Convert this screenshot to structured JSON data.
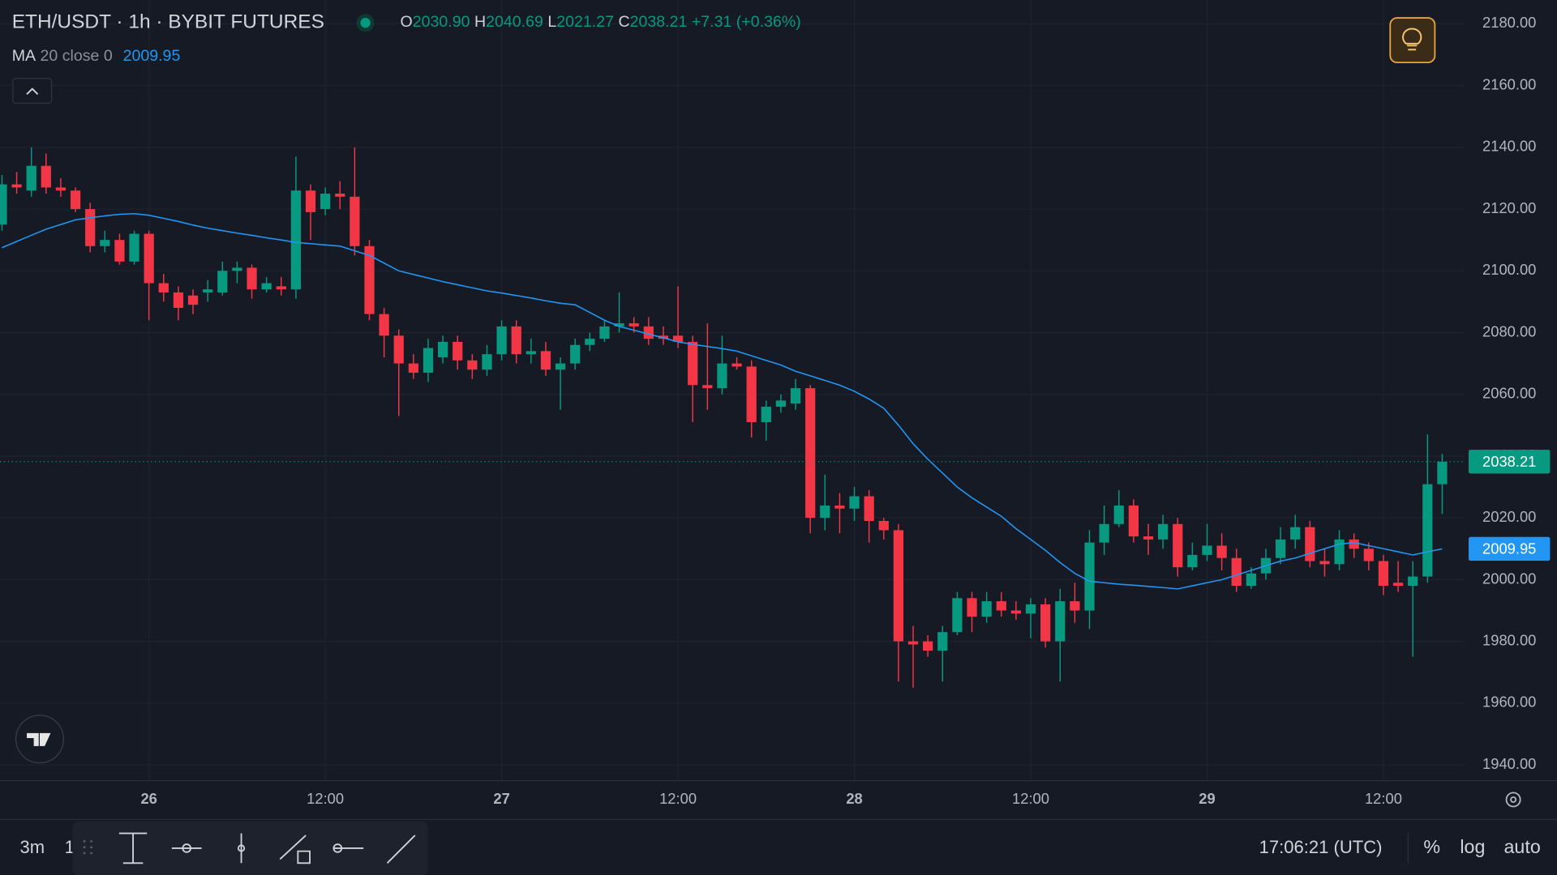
{
  "header": {
    "symbol": "ETH/USDT · 1h · BYBIT FUTURES",
    "ohlc": [
      {
        "key": "O",
        "value": "2030.90"
      },
      {
        "key": "H",
        "value": "2040.69"
      },
      {
        "key": "L",
        "value": "2021.27"
      },
      {
        "key": "C",
        "value": "2038.21"
      }
    ],
    "change": "+7.31 (+0.36%)"
  },
  "chart_data": {
    "type": "candlestick",
    "categories": [
      null,
      null,
      null,
      null,
      null,
      null,
      null,
      null,
      null,
      null,
      "26",
      null,
      null,
      null,
      null,
      null,
      null,
      null,
      null,
      null,
      null,
      null,
      "12:00",
      null,
      null,
      null,
      null,
      null,
      null,
      null,
      null,
      null,
      null,
      null,
      "27",
      null,
      null,
      null,
      null,
      null,
      null,
      null,
      null,
      null,
      null,
      null,
      "12:00",
      null,
      null,
      null,
      null,
      null,
      null,
      null,
      null,
      null,
      null,
      null,
      "28",
      null,
      null,
      null,
      null,
      null,
      null,
      null,
      null,
      null,
      null,
      null,
      "12:00",
      null,
      null,
      null,
      null,
      null,
      null,
      null,
      null,
      null,
      null,
      null,
      "29",
      null,
      null,
      null,
      null,
      null,
      null,
      null,
      null,
      null,
      null,
      null,
      "12:00",
      null,
      null,
      null,
      null
    ],
    "open": [
      2115,
      2128,
      2126,
      2134,
      2127,
      2126,
      2120,
      2108,
      2110,
      2103,
      2112,
      2096,
      2093,
      2092,
      2093,
      2093,
      2100,
      2101,
      2094,
      2095,
      2094,
      2126,
      2120,
      2125,
      2124,
      2108,
      2086,
      2079,
      2070,
      2067,
      2072,
      2077,
      2071,
      2068,
      2073,
      2082,
      2073,
      2074,
      2068,
      2070,
      2076,
      2078,
      2082,
      2083,
      2082,
      2079,
      2079,
      2077,
      2063,
      2062,
      2070,
      2069,
      2051,
      2056,
      2057,
      2062,
      2020,
      2024,
      2023,
      2027,
      2019,
      2016,
      1980,
      1980,
      1977,
      1983,
      1994,
      1988,
      1993,
      1990,
      1989,
      1992,
      1980,
      1993,
      1990,
      2012,
      2018,
      2024,
      2014,
      2013,
      2018,
      2004,
      2008,
      2011,
      2007,
      1998,
      2002,
      2007,
      2013,
      2017,
      2006,
      2005,
      2013,
      2010,
      2006,
      1999,
      1998,
      2001,
      2030.9
    ],
    "high": [
      2131,
      2132,
      2140,
      2138,
      2130,
      2127,
      2122,
      2113,
      2112,
      2113,
      2113,
      2099,
      2095,
      2094,
      2097,
      2103,
      2103,
      2102,
      2098,
      2098,
      2137,
      2128,
      2127,
      2129,
      2140,
      2110,
      2088,
      2081,
      2073,
      2078,
      2079,
      2079,
      2073,
      2076,
      2084,
      2084,
      2078,
      2077,
      2072,
      2078,
      2080,
      2084,
      2093,
      2085,
      2085,
      2082,
      2095,
      2079,
      2083,
      2079,
      2072,
      2071,
      2058,
      2060,
      2065,
      2063,
      2034,
      2028,
      2030,
      2029,
      2020,
      2018,
      1985,
      1982,
      1985,
      1996,
      1996,
      1996,
      1996,
      1993,
      1994,
      1994,
      1997,
      1999,
      2016,
      2024,
      2029,
      2026,
      2018,
      2021,
      2020,
      2012,
      2018,
      2015,
      2010,
      2004,
      2010,
      2017,
      2021,
      2019,
      2010,
      2016,
      2015,
      2012,
      2008,
      2006,
      2006,
      2047,
      2040.69
    ],
    "low": [
      2113,
      2125,
      2124,
      2125,
      2124,
      2119,
      2106,
      2106,
      2102,
      2102,
      2084,
      2090,
      2084,
      2086,
      2090,
      2092,
      2096,
      2091,
      2093,
      2092,
      2091,
      2110,
      2118,
      2120,
      2105,
      2084,
      2072,
      2053,
      2065,
      2064,
      2070,
      2068,
      2065,
      2066,
      2071,
      2070,
      2070,
      2066,
      2055,
      2068,
      2074,
      2077,
      2080,
      2080,
      2076,
      2076,
      2075,
      2051,
      2055,
      2060,
      2068,
      2046,
      2045,
      2054,
      2055,
      2015,
      2016,
      2015,
      2019,
      2012,
      2013,
      1967,
      1965,
      1975,
      1967,
      1982,
      1983,
      1986,
      1988,
      1987,
      1981,
      1978,
      1967,
      1986,
      1984,
      2008,
      2017,
      2012,
      2008,
      2010,
      2001,
      2003,
      2006,
      2003,
      1996,
      1997,
      2000,
      2005,
      2010,
      2004,
      2001,
      2003,
      2007,
      2003,
      1995,
      1996,
      1975,
      1999,
      2021.27
    ],
    "close": [
      2128,
      2127,
      2134,
      2127,
      2126,
      2120,
      2108,
      2110,
      2103,
      2112,
      2096,
      2093,
      2088,
      2089,
      2094,
      2100,
      2101,
      2094,
      2096,
      2094,
      2126,
      2119,
      2125,
      2124,
      2108,
      2086,
      2079,
      2070,
      2067,
      2075,
      2077,
      2071,
      2068,
      2073,
      2082,
      2073,
      2074,
      2068,
      2070,
      2076,
      2078,
      2082,
      2083,
      2082,
      2078,
      2078,
      2077,
      2063,
      2062,
      2070,
      2069,
      2051,
      2056,
      2058,
      2062,
      2020,
      2024,
      2023,
      2027,
      2019,
      2016,
      1980,
      1979,
      1977,
      1983,
      1994,
      1988,
      1993,
      1990,
      1989,
      1992,
      1980,
      1993,
      1990,
      2012,
      2018,
      2024,
      2014,
      2013,
      2018,
      2004,
      2008,
      2011,
      2007,
      1998,
      2002,
      2007,
      2013,
      2017,
      2006,
      2005,
      2013,
      2010,
      2006,
      1998,
      1998,
      2001,
      2030.9,
      2038.21
    ],
    "up_color": "#089981",
    "down_color": "#f23645",
    "series": [
      {
        "name": "MA",
        "params": "20 close 0",
        "color": "#2196f3",
        "values": [
          2107.5,
          2109.5,
          2111.5,
          2113.5,
          2115,
          2116.5,
          2117.2,
          2117.8,
          2118.3,
          2118.5,
          2118,
          2117,
          2116,
          2114.8,
          2113.8,
          2113,
          2112.2,
          2111.5,
          2110.7,
          2110,
          2109.2,
          2108.8,
          2108.4,
          2108,
          2106.5,
          2105,
          2102.5,
          2100,
          2098.8,
          2097.7,
          2096.5,
          2095.5,
          2094.5,
          2093.5,
          2092.8,
          2092,
          2091.2,
          2090.3,
          2089.5,
          2089,
          2086.5,
          2084,
          2082,
          2080.8,
          2079.5,
          2078.3,
          2077,
          2076.2,
          2075.5,
          2074.8,
          2074,
          2072.5,
          2071,
          2069.5,
          2067.5,
          2066,
          2064.5,
          2063,
          2061,
          2058.5,
          2055.5,
          2050,
          2044,
          2039,
          2034.5,
          2030,
          2026.5,
          2023.5,
          2020.5,
          2016.5,
          2013,
          2009.5,
          2005.5,
          2002,
          1999.5,
          1999,
          1998.5,
          1998.2,
          1997.8,
          1997.4,
          1997,
          1998,
          1999,
          2000,
          2001.5,
          2003,
          2004.5,
          2006,
          2007,
          2008.5,
          2010,
          2011.5,
          2012,
          2011,
          2010,
          2009,
          2008,
          2009,
          2009.95
        ]
      }
    ],
    "price_tags": [
      {
        "value": 2038.21,
        "label": "2038.21",
        "color": "#089981"
      },
      {
        "value": 2009.95,
        "label": "2009.95",
        "color": "#2196f3"
      }
    ],
    "ylim": [
      1934.86,
      2187.71
    ],
    "yticks": [
      {
        "value": 1940,
        "label": "1940.00"
      },
      {
        "value": 1960,
        "label": "1960.00"
      },
      {
        "value": 1980,
        "label": "1980.00"
      },
      {
        "value": 2000,
        "label": "2000.00"
      },
      {
        "value": 2020,
        "label": "2020.00"
      },
      {
        "value": 2040,
        "label": "2040.00"
      },
      {
        "value": 2060,
        "label": "2060.00"
      },
      {
        "value": 2080,
        "label": "2080.00"
      },
      {
        "value": 2100,
        "label": "2100.00"
      },
      {
        "value": 2120,
        "label": "2120.00"
      },
      {
        "value": 2140,
        "label": "2140.00"
      },
      {
        "value": 2160,
        "label": "2160.00"
      },
      {
        "value": 2180,
        "label": "2180.00"
      }
    ],
    "grid": true
  },
  "toolbar": {
    "interval": "3m",
    "interval2": "1"
  },
  "footer": {
    "time": "17:06:21 (UTC)",
    "percent": "%",
    "log": "log",
    "auto": "auto"
  }
}
